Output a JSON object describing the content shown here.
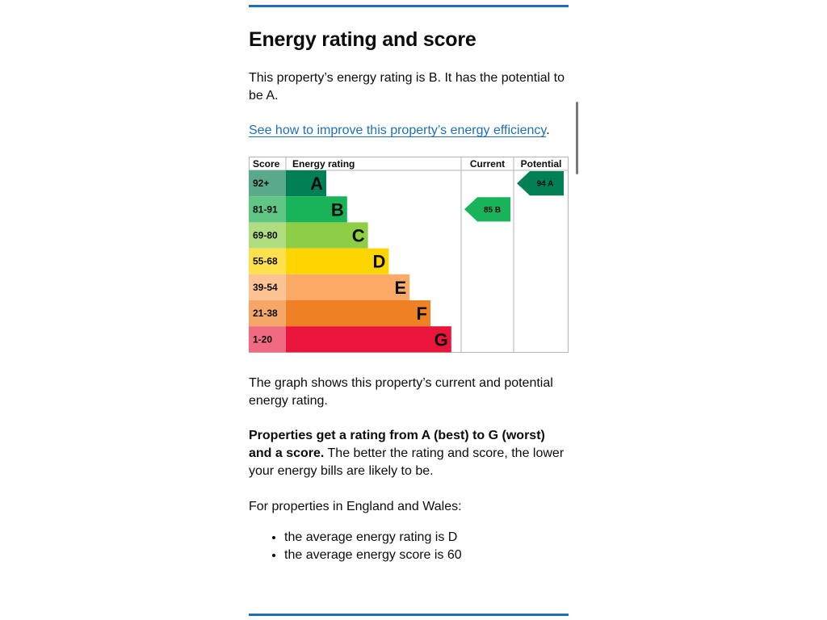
{
  "heading": "Energy rating and score",
  "intro": "This property’s energy rating is B. It has the potential to be A.",
  "improve_link": "See how to improve this property’s energy efficiency",
  "improve_suffix": ".",
  "graph_description": "The graph shows this property’s current and potential energy rating.",
  "ratings_bold": "Properties get a rating from A (best) to G (worst) and a score.",
  "ratings_text": " The better the rating and score, the lower your energy bills are likely to be.",
  "england_text": "For properties in England and Wales:",
  "averages": [
    "the average energy rating is D",
    "the average energy score is 60"
  ],
  "chart_data": {
    "type": "table",
    "headers": {
      "score": "Score",
      "rating": "Energy rating",
      "current": "Current",
      "potential": "Potential"
    },
    "bands": [
      {
        "score": "92+",
        "letter": "A",
        "color": "#008054",
        "score_color": "#5aa98a"
      },
      {
        "score": "81-91",
        "letter": "B",
        "color": "#19b459",
        "score_color": "#5fc685"
      },
      {
        "score": "69-80",
        "letter": "C",
        "color": "#8dce46",
        "score_color": "#b0dd80"
      },
      {
        "score": "55-68",
        "letter": "D",
        "color": "#ffd500",
        "score_color": "#ffe14d"
      },
      {
        "score": "39-54",
        "letter": "E",
        "color": "#fcaa65",
        "score_color": "#fdc393"
      },
      {
        "score": "21-38",
        "letter": "F",
        "color": "#ef8023",
        "score_color": "#f4a768"
      },
      {
        "score": "1-20",
        "letter": "G",
        "color": "#e9153b",
        "score_color": "#f06a82"
      }
    ],
    "current": {
      "score": 85,
      "letter": "B",
      "label": "85 B",
      "color": "#19b459"
    },
    "potential": {
      "score": 94,
      "letter": "A",
      "label": "94 A",
      "color": "#008054"
    }
  }
}
